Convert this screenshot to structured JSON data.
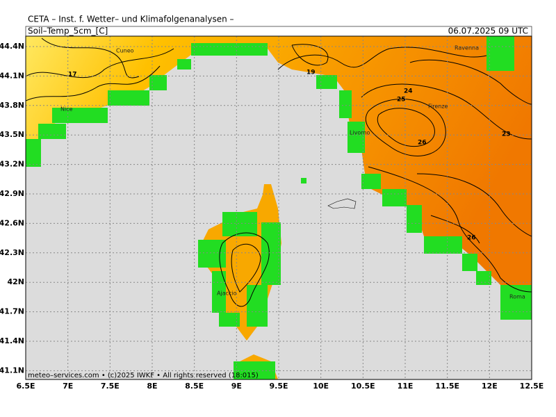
{
  "header": {
    "title": "CETA – Inst. f. Wetter– und Klimafolgenanalysen –",
    "field": "Soil–Temp_5cm_[C]",
    "valid": "06.07.2025 09 UTC"
  },
  "axes": {
    "lon": [
      "6.5E",
      "7E",
      "7.5E",
      "8E",
      "8.5E",
      "9E",
      "9.5E",
      "10E",
      "10.5E",
      "11E",
      "11.5E",
      "12E",
      "12.5E"
    ],
    "lat": [
      "44.4N",
      "44.1N",
      "43.8N",
      "43.5N",
      "43.2N",
      "42.9N",
      "42.6N",
      "42.3N",
      "42N",
      "41.7N",
      "41.4N",
      "41.1N"
    ]
  },
  "cities": [
    "Cuneo",
    "Nice",
    "Livorno",
    "Firenze",
    "Ravenna",
    "Ajaccio",
    "Roma"
  ],
  "contour_labels": [
    "17",
    "19",
    "24",
    "25",
    "26",
    "23",
    "26"
  ],
  "footer": "meteo–services.com • (c)2025 IWKF • All rights reserved (18:015)"
}
